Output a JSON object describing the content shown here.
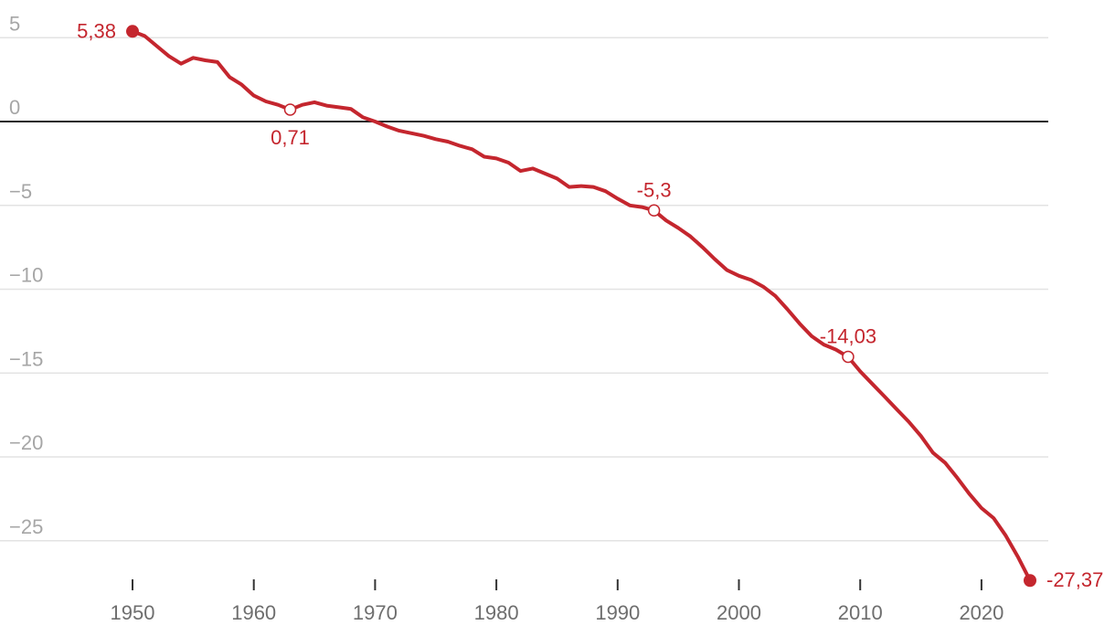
{
  "colors": {
    "line": "#c4262e",
    "grid": "#e3e3e3",
    "zero": "#222222",
    "ytick": "#a6a6a6",
    "xtick": "#6e6e6e",
    "bg": "#ffffff"
  },
  "chart_data": {
    "type": "line",
    "title": "",
    "xlabel": "",
    "ylabel": "",
    "xlim": [
      1944,
      2026
    ],
    "ylim": [
      -28.5,
      6.5
    ],
    "grid": true,
    "y_ticks": [
      {
        "value": 5,
        "label": "5"
      },
      {
        "value": 0,
        "label": "0"
      },
      {
        "value": -5,
        "label": "−5"
      },
      {
        "value": -10,
        "label": "−10"
      },
      {
        "value": -15,
        "label": "−15"
      },
      {
        "value": -20,
        "label": "−20"
      },
      {
        "value": -25,
        "label": "−25"
      }
    ],
    "x_ticks": [
      {
        "value": 1950,
        "label": "1950"
      },
      {
        "value": 1960,
        "label": "1960"
      },
      {
        "value": 1970,
        "label": "1970"
      },
      {
        "value": 1980,
        "label": "1980"
      },
      {
        "value": 1990,
        "label": "1990"
      },
      {
        "value": 2000,
        "label": "2000"
      },
      {
        "value": 2010,
        "label": "2010"
      },
      {
        "value": 2020,
        "label": "2020"
      }
    ],
    "series": [
      {
        "name": "value",
        "x": [
          1950,
          1951,
          1952,
          1953,
          1954,
          1955,
          1956,
          1957,
          1958,
          1959,
          1960,
          1961,
          1962,
          1963,
          1964,
          1965,
          1966,
          1967,
          1968,
          1969,
          1970,
          1971,
          1972,
          1973,
          1974,
          1975,
          1976,
          1977,
          1978,
          1979,
          1980,
          1981,
          1982,
          1983,
          1984,
          1985,
          1986,
          1987,
          1988,
          1989,
          1990,
          1991,
          1992,
          1993,
          1994,
          1995,
          1996,
          1997,
          1998,
          1999,
          2000,
          2001,
          2002,
          2003,
          2004,
          2005,
          2006,
          2007,
          2008,
          2009,
          2010,
          2011,
          2012,
          2013,
          2014,
          2015,
          2016,
          2017,
          2018,
          2019,
          2020,
          2021,
          2022,
          2023,
          2024
        ],
        "values": [
          5.38,
          5.1,
          4.5,
          3.9,
          3.45,
          3.8,
          3.65,
          3.55,
          2.65,
          2.2,
          1.55,
          1.2,
          1.0,
          0.71,
          1.0,
          1.15,
          0.95,
          0.85,
          0.75,
          0.25,
          0.0,
          -0.3,
          -0.55,
          -0.7,
          -0.85,
          -1.05,
          -1.2,
          -1.45,
          -1.65,
          -2.1,
          -2.2,
          -2.45,
          -2.95,
          -2.8,
          -3.1,
          -3.4,
          -3.9,
          -3.85,
          -3.9,
          -4.15,
          -4.6,
          -5.0,
          -5.1,
          -5.3,
          -5.9,
          -6.35,
          -6.85,
          -7.5,
          -8.2,
          -8.85,
          -9.2,
          -9.45,
          -9.85,
          -10.4,
          -11.2,
          -12.05,
          -12.8,
          -13.3,
          -13.6,
          -14.03,
          -14.9,
          -15.65,
          -16.4,
          -17.15,
          -17.9,
          -18.75,
          -19.75,
          -20.35,
          -21.25,
          -22.2,
          -23.05,
          -23.65,
          -24.7,
          -25.95,
          -27.37
        ]
      }
    ],
    "annotations": [
      {
        "x": 1950,
        "y": 5.38,
        "label": "5,38",
        "marker": "filled",
        "label_pos": "left"
      },
      {
        "x": 1963,
        "y": 0.71,
        "label": "0,71",
        "marker": "hollow",
        "label_pos": "below"
      },
      {
        "x": 1993,
        "y": -5.3,
        "label": "-5,3",
        "marker": "hollow",
        "label_pos": "above"
      },
      {
        "x": 2009,
        "y": -14.03,
        "label": "-14,03",
        "marker": "hollow",
        "label_pos": "above"
      },
      {
        "x": 2024,
        "y": -27.37,
        "label": "-27,37",
        "marker": "filled",
        "label_pos": "right"
      }
    ]
  }
}
